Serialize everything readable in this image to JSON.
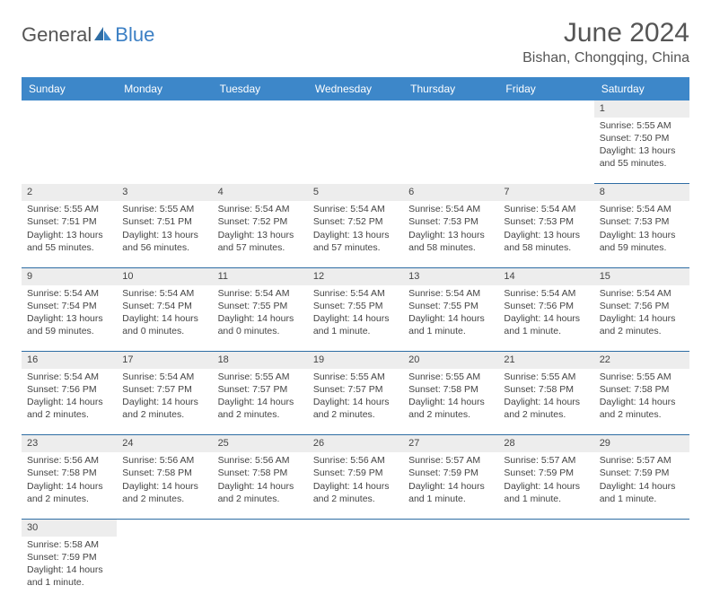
{
  "brand": {
    "part1": "General",
    "part2": "Blue"
  },
  "title": "June 2024",
  "location": "Bishan, Chongqing, China",
  "colors": {
    "header_bg": "#3d87c9",
    "rule": "#2e6da4",
    "gray": "#ededed"
  },
  "weekdays": [
    "Sunday",
    "Monday",
    "Tuesday",
    "Wednesday",
    "Thursday",
    "Friday",
    "Saturday"
  ],
  "weeks": [
    [
      null,
      null,
      null,
      null,
      null,
      null,
      {
        "n": "1",
        "sr": "Sunrise: 5:55 AM",
        "ss": "Sunset: 7:50 PM",
        "d1": "Daylight: 13 hours",
        "d2": "and 55 minutes."
      }
    ],
    [
      {
        "n": "2",
        "sr": "Sunrise: 5:55 AM",
        "ss": "Sunset: 7:51 PM",
        "d1": "Daylight: 13 hours",
        "d2": "and 55 minutes."
      },
      {
        "n": "3",
        "sr": "Sunrise: 5:55 AM",
        "ss": "Sunset: 7:51 PM",
        "d1": "Daylight: 13 hours",
        "d2": "and 56 minutes."
      },
      {
        "n": "4",
        "sr": "Sunrise: 5:54 AM",
        "ss": "Sunset: 7:52 PM",
        "d1": "Daylight: 13 hours",
        "d2": "and 57 minutes."
      },
      {
        "n": "5",
        "sr": "Sunrise: 5:54 AM",
        "ss": "Sunset: 7:52 PM",
        "d1": "Daylight: 13 hours",
        "d2": "and 57 minutes."
      },
      {
        "n": "6",
        "sr": "Sunrise: 5:54 AM",
        "ss": "Sunset: 7:53 PM",
        "d1": "Daylight: 13 hours",
        "d2": "and 58 minutes."
      },
      {
        "n": "7",
        "sr": "Sunrise: 5:54 AM",
        "ss": "Sunset: 7:53 PM",
        "d1": "Daylight: 13 hours",
        "d2": "and 58 minutes."
      },
      {
        "n": "8",
        "sr": "Sunrise: 5:54 AM",
        "ss": "Sunset: 7:53 PM",
        "d1": "Daylight: 13 hours",
        "d2": "and 59 minutes."
      }
    ],
    [
      {
        "n": "9",
        "sr": "Sunrise: 5:54 AM",
        "ss": "Sunset: 7:54 PM",
        "d1": "Daylight: 13 hours",
        "d2": "and 59 minutes."
      },
      {
        "n": "10",
        "sr": "Sunrise: 5:54 AM",
        "ss": "Sunset: 7:54 PM",
        "d1": "Daylight: 14 hours",
        "d2": "and 0 minutes."
      },
      {
        "n": "11",
        "sr": "Sunrise: 5:54 AM",
        "ss": "Sunset: 7:55 PM",
        "d1": "Daylight: 14 hours",
        "d2": "and 0 minutes."
      },
      {
        "n": "12",
        "sr": "Sunrise: 5:54 AM",
        "ss": "Sunset: 7:55 PM",
        "d1": "Daylight: 14 hours",
        "d2": "and 1 minute."
      },
      {
        "n": "13",
        "sr": "Sunrise: 5:54 AM",
        "ss": "Sunset: 7:55 PM",
        "d1": "Daylight: 14 hours",
        "d2": "and 1 minute."
      },
      {
        "n": "14",
        "sr": "Sunrise: 5:54 AM",
        "ss": "Sunset: 7:56 PM",
        "d1": "Daylight: 14 hours",
        "d2": "and 1 minute."
      },
      {
        "n": "15",
        "sr": "Sunrise: 5:54 AM",
        "ss": "Sunset: 7:56 PM",
        "d1": "Daylight: 14 hours",
        "d2": "and 2 minutes."
      }
    ],
    [
      {
        "n": "16",
        "sr": "Sunrise: 5:54 AM",
        "ss": "Sunset: 7:56 PM",
        "d1": "Daylight: 14 hours",
        "d2": "and 2 minutes."
      },
      {
        "n": "17",
        "sr": "Sunrise: 5:54 AM",
        "ss": "Sunset: 7:57 PM",
        "d1": "Daylight: 14 hours",
        "d2": "and 2 minutes."
      },
      {
        "n": "18",
        "sr": "Sunrise: 5:55 AM",
        "ss": "Sunset: 7:57 PM",
        "d1": "Daylight: 14 hours",
        "d2": "and 2 minutes."
      },
      {
        "n": "19",
        "sr": "Sunrise: 5:55 AM",
        "ss": "Sunset: 7:57 PM",
        "d1": "Daylight: 14 hours",
        "d2": "and 2 minutes."
      },
      {
        "n": "20",
        "sr": "Sunrise: 5:55 AM",
        "ss": "Sunset: 7:58 PM",
        "d1": "Daylight: 14 hours",
        "d2": "and 2 minutes."
      },
      {
        "n": "21",
        "sr": "Sunrise: 5:55 AM",
        "ss": "Sunset: 7:58 PM",
        "d1": "Daylight: 14 hours",
        "d2": "and 2 minutes."
      },
      {
        "n": "22",
        "sr": "Sunrise: 5:55 AM",
        "ss": "Sunset: 7:58 PM",
        "d1": "Daylight: 14 hours",
        "d2": "and 2 minutes."
      }
    ],
    [
      {
        "n": "23",
        "sr": "Sunrise: 5:56 AM",
        "ss": "Sunset: 7:58 PM",
        "d1": "Daylight: 14 hours",
        "d2": "and 2 minutes."
      },
      {
        "n": "24",
        "sr": "Sunrise: 5:56 AM",
        "ss": "Sunset: 7:58 PM",
        "d1": "Daylight: 14 hours",
        "d2": "and 2 minutes."
      },
      {
        "n": "25",
        "sr": "Sunrise: 5:56 AM",
        "ss": "Sunset: 7:58 PM",
        "d1": "Daylight: 14 hours",
        "d2": "and 2 minutes."
      },
      {
        "n": "26",
        "sr": "Sunrise: 5:56 AM",
        "ss": "Sunset: 7:59 PM",
        "d1": "Daylight: 14 hours",
        "d2": "and 2 minutes."
      },
      {
        "n": "27",
        "sr": "Sunrise: 5:57 AM",
        "ss": "Sunset: 7:59 PM",
        "d1": "Daylight: 14 hours",
        "d2": "and 1 minute."
      },
      {
        "n": "28",
        "sr": "Sunrise: 5:57 AM",
        "ss": "Sunset: 7:59 PM",
        "d1": "Daylight: 14 hours",
        "d2": "and 1 minute."
      },
      {
        "n": "29",
        "sr": "Sunrise: 5:57 AM",
        "ss": "Sunset: 7:59 PM",
        "d1": "Daylight: 14 hours",
        "d2": "and 1 minute."
      }
    ],
    [
      {
        "n": "30",
        "sr": "Sunrise: 5:58 AM",
        "ss": "Sunset: 7:59 PM",
        "d1": "Daylight: 14 hours",
        "d2": "and 1 minute."
      },
      null,
      null,
      null,
      null,
      null,
      null
    ]
  ]
}
